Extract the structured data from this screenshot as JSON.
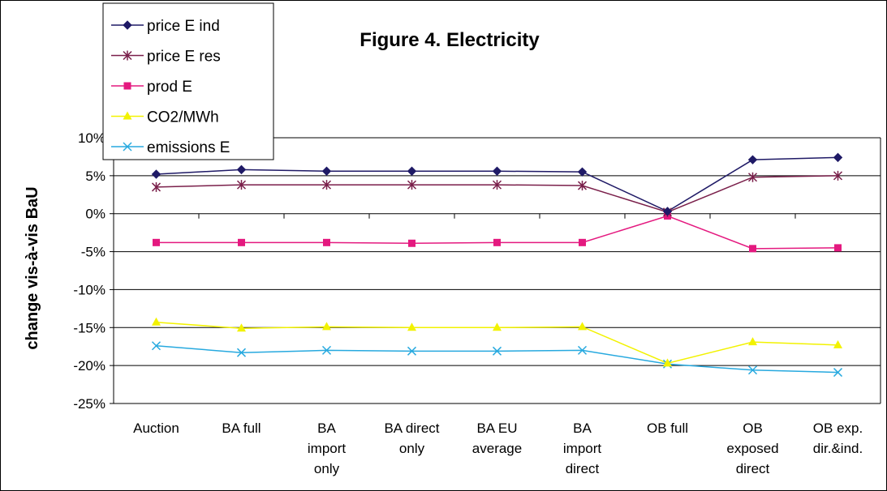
{
  "chart_data": {
    "type": "line",
    "title": "Figure 4. Electricity",
    "ylabel": "change vis-à-vis BaU",
    "xlabel": "",
    "ylim": [
      -25,
      10
    ],
    "yticks": [
      "10%",
      "5%",
      "0%",
      "-5%",
      "-10%",
      "-15%",
      "-20%",
      "-25%"
    ],
    "grid": "horizontal",
    "legend_placement": "top-left",
    "categories": [
      [
        "Auction"
      ],
      [
        "BA full"
      ],
      [
        "BA",
        "import",
        "only"
      ],
      [
        "BA direct",
        "only"
      ],
      [
        "BA EU",
        "average"
      ],
      [
        "BA",
        "import",
        "direct"
      ],
      [
        "OB full"
      ],
      [
        "OB",
        "exposed",
        "direct"
      ],
      [
        "OB exp.",
        "dir.&ind."
      ]
    ],
    "series": [
      {
        "name": "price E ind",
        "color": "#1f1a66",
        "marker": "diamond",
        "values": [
          5.2,
          5.8,
          5.6,
          5.6,
          5.6,
          5.5,
          0.3,
          7.1,
          7.4
        ]
      },
      {
        "name": "price E res",
        "color": "#7a1f4a",
        "marker": "asterisk",
        "values": [
          3.5,
          3.8,
          3.8,
          3.8,
          3.8,
          3.7,
          0.2,
          4.8,
          5.0
        ]
      },
      {
        "name": "prod E",
        "color": "#e4197f",
        "marker": "square",
        "values": [
          -3.8,
          -3.8,
          -3.8,
          -3.9,
          -3.8,
          -3.8,
          -0.3,
          -4.6,
          -4.5
        ]
      },
      {
        "name": "CO2/MWh",
        "color": "#f2f200",
        "marker": "triangle",
        "values": [
          -14.3,
          -15.1,
          -14.9,
          -15.0,
          -15.0,
          -14.9,
          -19.7,
          -16.9,
          -17.3
        ]
      },
      {
        "name": "emissions E",
        "color": "#27a9df",
        "marker": "x",
        "values": [
          -17.4,
          -18.3,
          -18.0,
          -18.1,
          -18.1,
          -18.0,
          -19.8,
          -20.6,
          -20.9
        ]
      }
    ]
  }
}
